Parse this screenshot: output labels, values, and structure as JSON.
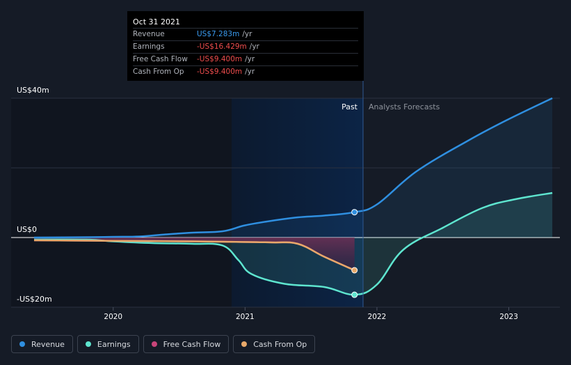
{
  "chart_data": {
    "type": "line",
    "y_axis_labels": [
      "US$40m",
      "US$0",
      "-US$20m"
    ],
    "ylim": [
      -20,
      40
    ],
    "x_ticks": [
      "2020",
      "2021",
      "2022",
      "2023"
    ],
    "past_label": "Past",
    "forecast_label": "Analysts Forecasts",
    "series": [
      {
        "name": "Revenue",
        "color": "#2f8fe0",
        "points": [
          [
            2019.4,
            0
          ],
          [
            2019.8,
            0.1
          ],
          [
            2020.0,
            0.2
          ],
          [
            2020.2,
            0.3
          ],
          [
            2020.4,
            0.9
          ],
          [
            2020.6,
            1.4
          ],
          [
            2020.83,
            1.8
          ],
          [
            2021.0,
            3.5
          ],
          [
            2021.2,
            4.8
          ],
          [
            2021.4,
            5.8
          ],
          [
            2021.6,
            6.3
          ],
          [
            2021.83,
            7.283
          ],
          [
            2022.0,
            9.5
          ],
          [
            2022.3,
            19
          ],
          [
            2022.7,
            28
          ],
          [
            2023.0,
            34
          ],
          [
            2023.33,
            40
          ]
        ]
      },
      {
        "name": "Earnings",
        "color": "#5ee5cf",
        "points": [
          [
            2019.4,
            -0.6
          ],
          [
            2019.8,
            -0.6
          ],
          [
            2020.0,
            -1.1
          ],
          [
            2020.3,
            -1.6
          ],
          [
            2020.6,
            -1.8
          ],
          [
            2020.83,
            -2.3
          ],
          [
            2020.95,
            -6.5
          ],
          [
            2021.05,
            -10.5
          ],
          [
            2021.3,
            -13.3
          ],
          [
            2021.6,
            -14.2
          ],
          [
            2021.83,
            -16.429
          ],
          [
            2022.0,
            -13.5
          ],
          [
            2022.2,
            -3.5
          ],
          [
            2022.5,
            2.8
          ],
          [
            2022.8,
            8.5
          ],
          [
            2023.05,
            11
          ],
          [
            2023.33,
            12.8
          ]
        ]
      },
      {
        "name": "Free Cash Flow",
        "color": "#c8457a",
        "points": [
          [
            2019.4,
            -0.8
          ],
          [
            2019.8,
            -0.9
          ],
          [
            2020.2,
            -1.0
          ],
          [
            2020.6,
            -1.1
          ],
          [
            2020.83,
            -1.2
          ],
          [
            2021.2,
            -1.4
          ],
          [
            2021.4,
            -1.8
          ],
          [
            2021.6,
            -5.5
          ],
          [
            2021.83,
            -9.4
          ]
        ]
      },
      {
        "name": "Cash From Op",
        "color": "#e8a96a",
        "points": [
          [
            2019.4,
            -0.8
          ],
          [
            2019.8,
            -0.9
          ],
          [
            2020.2,
            -1.0
          ],
          [
            2020.6,
            -1.1
          ],
          [
            2020.83,
            -1.2
          ],
          [
            2021.2,
            -1.4
          ],
          [
            2021.4,
            -1.8
          ],
          [
            2021.6,
            -5.5
          ],
          [
            2021.83,
            -9.4
          ]
        ]
      }
    ],
    "highlight_date": "Oct 31 2021"
  },
  "tooltip": {
    "date": "Oct 31 2021",
    "rows": [
      {
        "label": "Revenue",
        "value": "US$7.283m",
        "unit": "/yr",
        "color": "#3a9bf0"
      },
      {
        "label": "Earnings",
        "value": "-US$16.429m",
        "unit": "/yr",
        "color": "#ef4d4d"
      },
      {
        "label": "Free Cash Flow",
        "value": "-US$9.400m",
        "unit": "/yr",
        "color": "#ef4d4d"
      },
      {
        "label": "Cash From Op",
        "value": "-US$9.400m",
        "unit": "/yr",
        "color": "#ef4d4d"
      }
    ]
  },
  "legend": [
    {
      "label": "Revenue",
      "color": "#2f8fe0"
    },
    {
      "label": "Earnings",
      "color": "#5ee5cf"
    },
    {
      "label": "Free Cash Flow",
      "color": "#c8457a"
    },
    {
      "label": "Cash From Op",
      "color": "#e8a96a"
    }
  ]
}
